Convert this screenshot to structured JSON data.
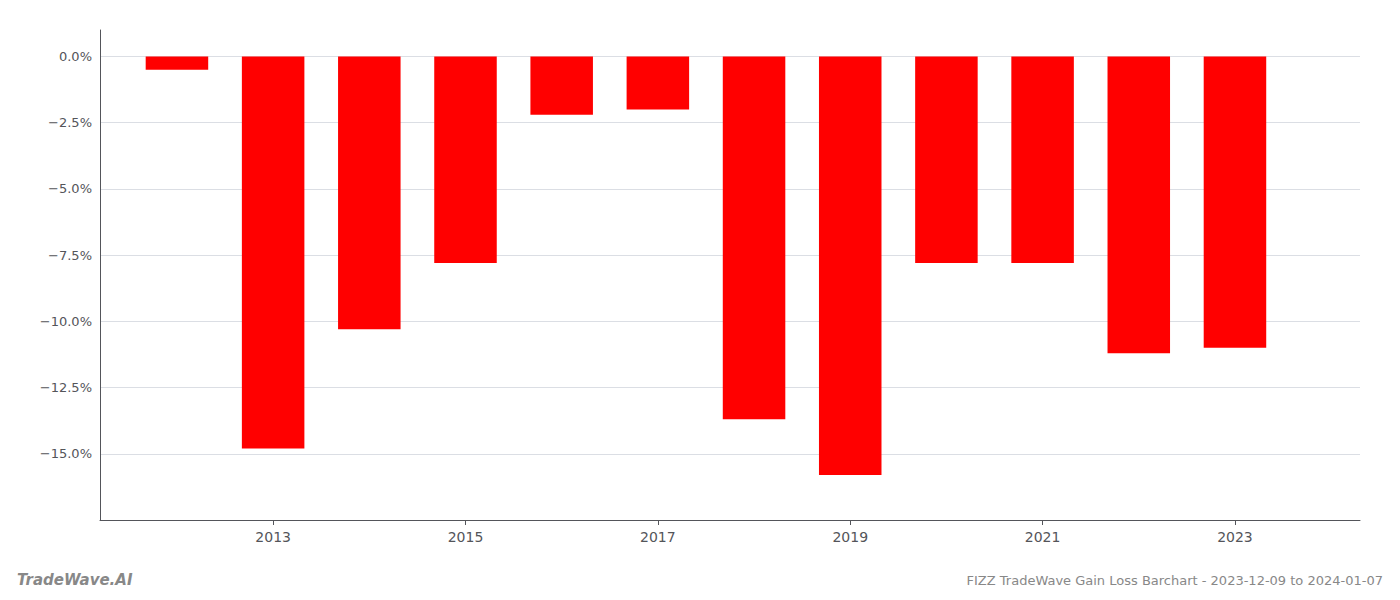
{
  "chart_data": {
    "type": "bar",
    "title": "FIZZ TradeWave Gain Loss Barchart - 2023-12-09 to 2024-01-07",
    "annotations": [
      "TradeWave.AI"
    ],
    "x": [
      2012,
      2013,
      2014,
      2015,
      2016,
      2017,
      2018,
      2019,
      2020,
      2021,
      2022,
      2023
    ],
    "values": [
      -0.5,
      -14.8,
      -10.3,
      -7.8,
      -2.2,
      -2.0,
      -13.7,
      -15.8,
      -7.8,
      -7.8,
      -11.2,
      -11.0
    ],
    "color": "#FF0000",
    "xlim": [
      2011.2,
      2024.3
    ],
    "xticks": [
      2013,
      2015,
      2017,
      2019,
      2021,
      2023
    ],
    "ylim": [
      -17.5,
      1.0
    ],
    "yticks": [
      {
        "value": 0.0,
        "label": "0.0%"
      },
      {
        "value": -2.5,
        "label": "−2.5%"
      },
      {
        "value": -5.0,
        "label": "−5.0%"
      },
      {
        "value": -7.5,
        "label": "−7.5%"
      },
      {
        "value": -10.0,
        "label": "−10.0%"
      },
      {
        "value": -12.5,
        "label": "−12.5%"
      },
      {
        "value": -15.0,
        "label": "−15.0%"
      }
    ],
    "grid": true
  }
}
